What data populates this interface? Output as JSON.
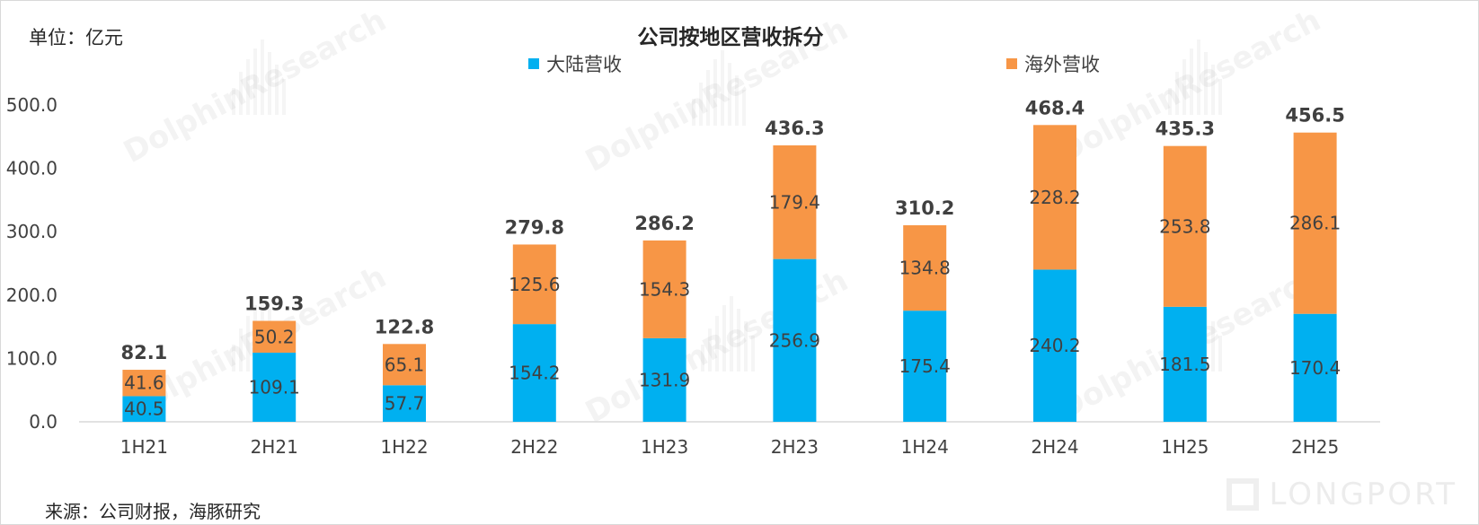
{
  "unit": "单位：亿元",
  "source": "来源：公司财报，海豚研究",
  "watermark": {
    "text": "DolphinResearch",
    "brand": "LONGPORT"
  },
  "colors": {
    "mainland": "#00B0F0",
    "overseas": "#F79646",
    "axis": "#D9D9D9",
    "text": "#404040"
  },
  "chart_data": {
    "type": "bar",
    "stacked": true,
    "title": "公司按地区营收拆分",
    "categories": [
      "1H21",
      "2H21",
      "1H22",
      "2H22",
      "1H23",
      "2H23",
      "1H24",
      "2H24",
      "1H25",
      "2H25"
    ],
    "series": [
      {
        "name": "大陆营收",
        "values": [
          40.5,
          109.1,
          57.7,
          154.2,
          131.9,
          256.9,
          175.4,
          240.2,
          181.5,
          170.4
        ]
      },
      {
        "name": "海外营收",
        "values": [
          41.6,
          50.2,
          65.1,
          125.6,
          154.3,
          179.4,
          134.8,
          228.2,
          253.8,
          286.1
        ]
      }
    ],
    "totals": [
      "82.1",
      "159.3",
      "122.8",
      "279.8",
      "286.2",
      "436.3",
      "310.2",
      "468.4",
      "435.3",
      "456.5"
    ],
    "yticks": [
      "0.0",
      "100.0",
      "200.0",
      "300.0",
      "400.0",
      "500.0"
    ],
    "ylim": [
      0,
      500
    ],
    "legend_position": "top-center",
    "grid": false
  }
}
